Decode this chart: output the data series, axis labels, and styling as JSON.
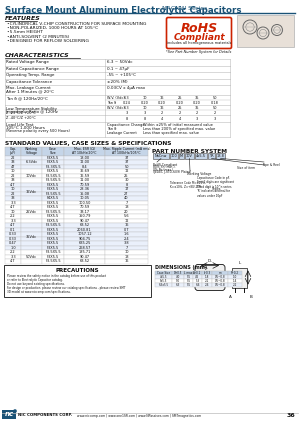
{
  "title_blue": "Surface Mount Aluminum Electrolytic Capacitors",
  "title_series": "NACNW Series",
  "title_color": "#1a5276",
  "features": [
    "CYLINDRICAL V-CHIP CONSTRUCTION FOR SURFACE MOUNTING",
    "NON-POLARIZED, 1000 HOURS AT 105°C",
    "5.5mm HEIGHT",
    "ANTI-SOLVENT (2 MINUTES)",
    "DESIGNED FOR REFLOW SOLDERING"
  ],
  "rohs_sub": "includes all homogeneous materials",
  "rohs_note": "*See Part Number System for Details",
  "vols": [
    "6.3",
    "10",
    "16",
    "25",
    "35",
    "50"
  ],
  "tand_vals": [
    "0.24",
    "0.20",
    "0.20",
    "0.20",
    "0.20",
    "0.18"
  ],
  "lts_vals": [
    "3",
    "3",
    "2",
    "2",
    "2",
    "2"
  ],
  "imp_vals": [
    "8",
    "8",
    "4",
    "4",
    "3",
    "3"
  ],
  "std_rows": [
    [
      "22",
      "6.3Vdc",
      "F3X5.5",
      "18.00",
      "37"
    ],
    [
      "33",
      "6.3Vdc",
      "F3X5.5",
      "12.00",
      "37"
    ],
    [
      "47",
      "6.3Vdc",
      "F3.3X5.5",
      "8.4",
      "50"
    ],
    [
      "10",
      "10Vdc",
      "F3X5.5",
      "36.69",
      "12"
    ],
    [
      "22",
      "10Vdc",
      "F3.5X5.5",
      "16.59",
      "25"
    ],
    [
      "33",
      "10Vdc",
      "F3.5X5.5",
      "11.00",
      "30"
    ],
    [
      "4.7",
      "16Vdc",
      "F3X5.5",
      "70.59",
      "8"
    ],
    [
      "10",
      "16Vdc",
      "F3X5.5",
      "28.36",
      "17"
    ],
    [
      "22",
      "16Vdc",
      "F3.5X5.5",
      "15.08",
      "27"
    ],
    [
      "33",
      "16Vdc",
      "F4X5.5",
      "10.05",
      "40"
    ],
    [
      "3.3",
      "25Vdc",
      "F3X5.5",
      "100.50",
      "7"
    ],
    [
      "4.7",
      "25Vdc",
      "F3X5.5",
      "70.59",
      "13"
    ],
    [
      "10",
      "25Vdc",
      "F3.5X5.5",
      "33.17",
      "20"
    ],
    [
      "2.2",
      "25Vdc",
      "F3X5.5",
      "150.79",
      "5.6"
    ],
    [
      "3.3",
      "25Vdc",
      "F3X5.5",
      "90.47",
      "12"
    ],
    [
      "4.7",
      "35Vdc",
      "F3.5X5.5",
      "63.52",
      "16"
    ],
    [
      "0.1",
      "35Vdc",
      "F3X5.5",
      "2060.81",
      "0.7"
    ],
    [
      "0.33",
      "35Vdc",
      "F3X5.5",
      "1057.12",
      "1.6"
    ],
    [
      "0.33",
      "35Vdc",
      "F3X5.5",
      "904.75",
      "2.4"
    ],
    [
      "0.47",
      "35Vdc",
      "F3X5.5",
      "635.25",
      "3.8"
    ],
    [
      "1.0",
      "35Vdc",
      "F3X5.5",
      "268.57",
      "7"
    ],
    [
      "2.2",
      "50Vdc",
      "F3.5X5.5",
      "185.71",
      "10"
    ],
    [
      "3.3",
      "50Vdc",
      "F3X5.5",
      "90.47",
      "13"
    ],
    [
      "4.7",
      "50Vdc",
      "F3.5X5.5",
      "63.52",
      "16"
    ]
  ],
  "voltage_groups": [
    [
      "6.3Vdc",
      3
    ],
    [
      "10Vdc",
      3
    ],
    [
      "16Vdc",
      4
    ],
    [
      "25Vdc",
      5
    ],
    [
      "35Vdc",
      6
    ],
    [
      "50Vdc",
      3
    ]
  ],
  "part_number_title": "PART NUMBER SYSTEM",
  "pn_parts": [
    "NaCnw",
    "100",
    "M",
    "10V",
    "4x5.5",
    "TR",
    "13.8"
  ],
  "dim_title": "DIMENSIONS (mm)",
  "dim_headers": [
    "Case Size",
    "D+0.5",
    "L max",
    "A+0.2",
    "l+0.3",
    "m",
    "P+0.2"
  ],
  "dim_rows": [
    [
      "4x5.5",
      "4.0",
      "5.5",
      "4.5",
      "1.8",
      "0.5~0.8",
      "1.0"
    ],
    [
      "5x5.5",
      "5.0",
      "5.5",
      "5.3",
      "2.1",
      "0.5~0.8",
      "1.4"
    ],
    [
      "6.3x5.5",
      "6.3",
      "5.5",
      "6.6",
      "2.6",
      "0.5~0.8",
      "2.2"
    ]
  ],
  "precautions_title": "PRECAUTIONS",
  "precautions_text": "Please review the safety notice in the catalog before use of this product.\nRefer to Electrolytic Capacitor catalog.\nDo not use beyond existing specifications.\nFor design or production, please review our catalog specifications - please review SMT\n3D model at www.niccomp.com/specifications.",
  "footer_url1": "www.niccomp.com",
  "footer_url2": "www.one1SR.com",
  "footer_url3": "www.NPassives.com",
  "footer_url4": "SMTmagnetics.com",
  "footer_page": "36",
  "bg_color": "#ffffff",
  "blue": "#1a5276",
  "lgray": "#bbbbbb",
  "table_blue": "#c5d5e8"
}
